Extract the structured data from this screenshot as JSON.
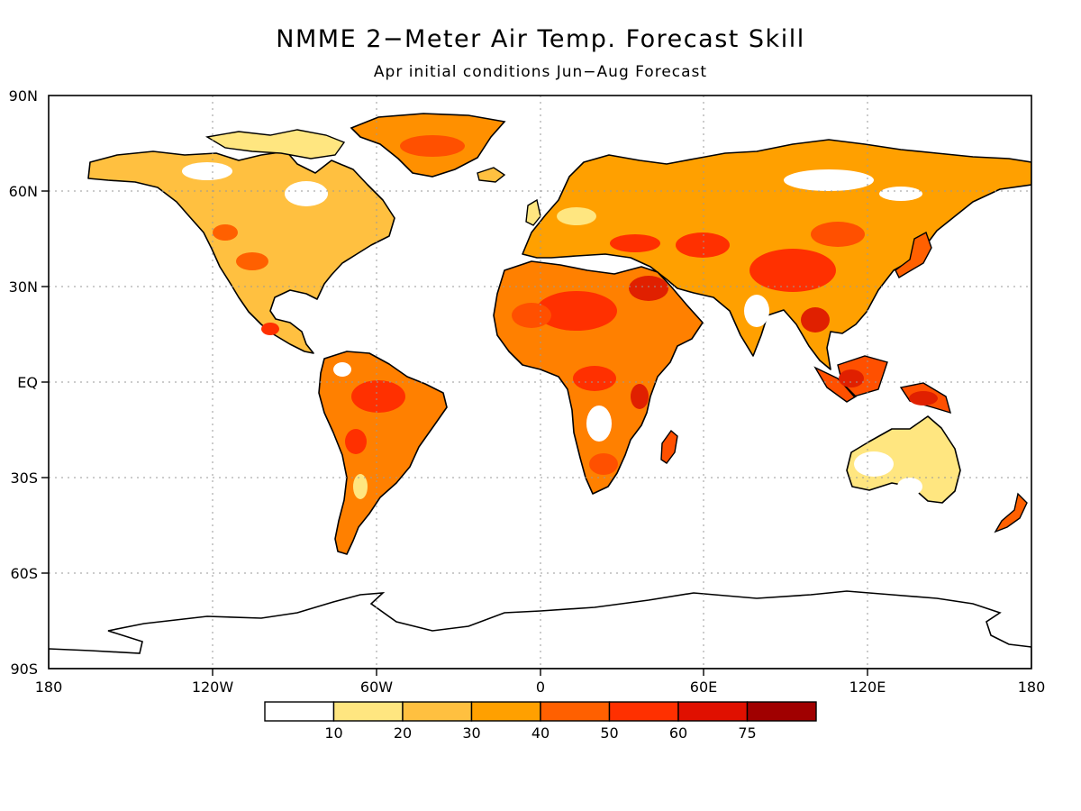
{
  "title": "NMME 2−Meter Air Temp. Forecast Skill",
  "subtitle": "Apr initial conditions   Jun−Aug Forecast",
  "map": {
    "lon_ticks": [
      "180",
      "120W",
      "60W",
      "0",
      "60E",
      "120E",
      "180"
    ],
    "lat_ticks": [
      "90N",
      "60N",
      "30N",
      "EQ",
      "30S",
      "60S",
      "90S"
    ],
    "grid": true,
    "grid_style": "dotted",
    "coastline_color": "#000000"
  },
  "colorbar": {
    "labels": [
      "10",
      "20",
      "30",
      "40",
      "50",
      "60",
      "75"
    ],
    "colors": [
      "#ffffff",
      "#ffe680",
      "#ffc040",
      "#ffa000",
      "#ff6000",
      "#ff3000",
      "#e01000",
      "#a00000"
    ]
  }
}
